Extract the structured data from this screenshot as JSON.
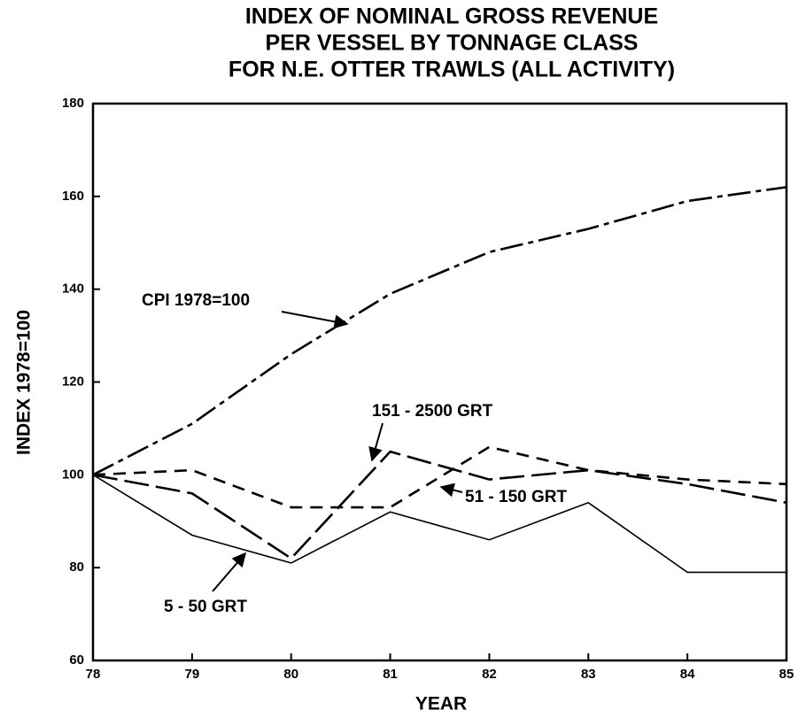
{
  "chart_data": {
    "type": "line",
    "title": [
      "INDEX OF NOMINAL GROSS REVENUE",
      "PER VESSEL BY TONNAGE CLASS",
      "FOR N.E. OTTER TRAWLS (ALL ACTIVITY)"
    ],
    "x_label": "YEAR",
    "y_label": "INDEX 1978=100",
    "x": [
      78,
      79,
      80,
      81,
      82,
      83,
      84,
      85
    ],
    "xlim": [
      78,
      85
    ],
    "xticks": [
      78,
      79,
      80,
      81,
      82,
      83,
      84,
      85
    ],
    "ylim": [
      60,
      180
    ],
    "yticks": [
      60,
      80,
      100,
      120,
      140,
      160,
      180
    ],
    "series": [
      {
        "name": "CPI 1978=100",
        "color": "#000000",
        "dash": "26 6 6 6",
        "values": [
          100,
          111,
          126,
          139,
          148,
          153,
          159,
          162
        ]
      },
      {
        "name": "151 - 2500 GRT",
        "color": "#000000",
        "dash": "28 8",
        "values": [
          100,
          96,
          82,
          105,
          99,
          101,
          98,
          94
        ]
      },
      {
        "name": "51 - 150 GRT",
        "color": "#000000",
        "dash": "14 9",
        "values": [
          100,
          101,
          93,
          93,
          106,
          101,
          99,
          98
        ]
      },
      {
        "name": "5 - 50 GRT",
        "color": "#000000",
        "dash": "none",
        "values": [
          100,
          87,
          81,
          92,
          86,
          94,
          79,
          79
        ]
      }
    ]
  }
}
